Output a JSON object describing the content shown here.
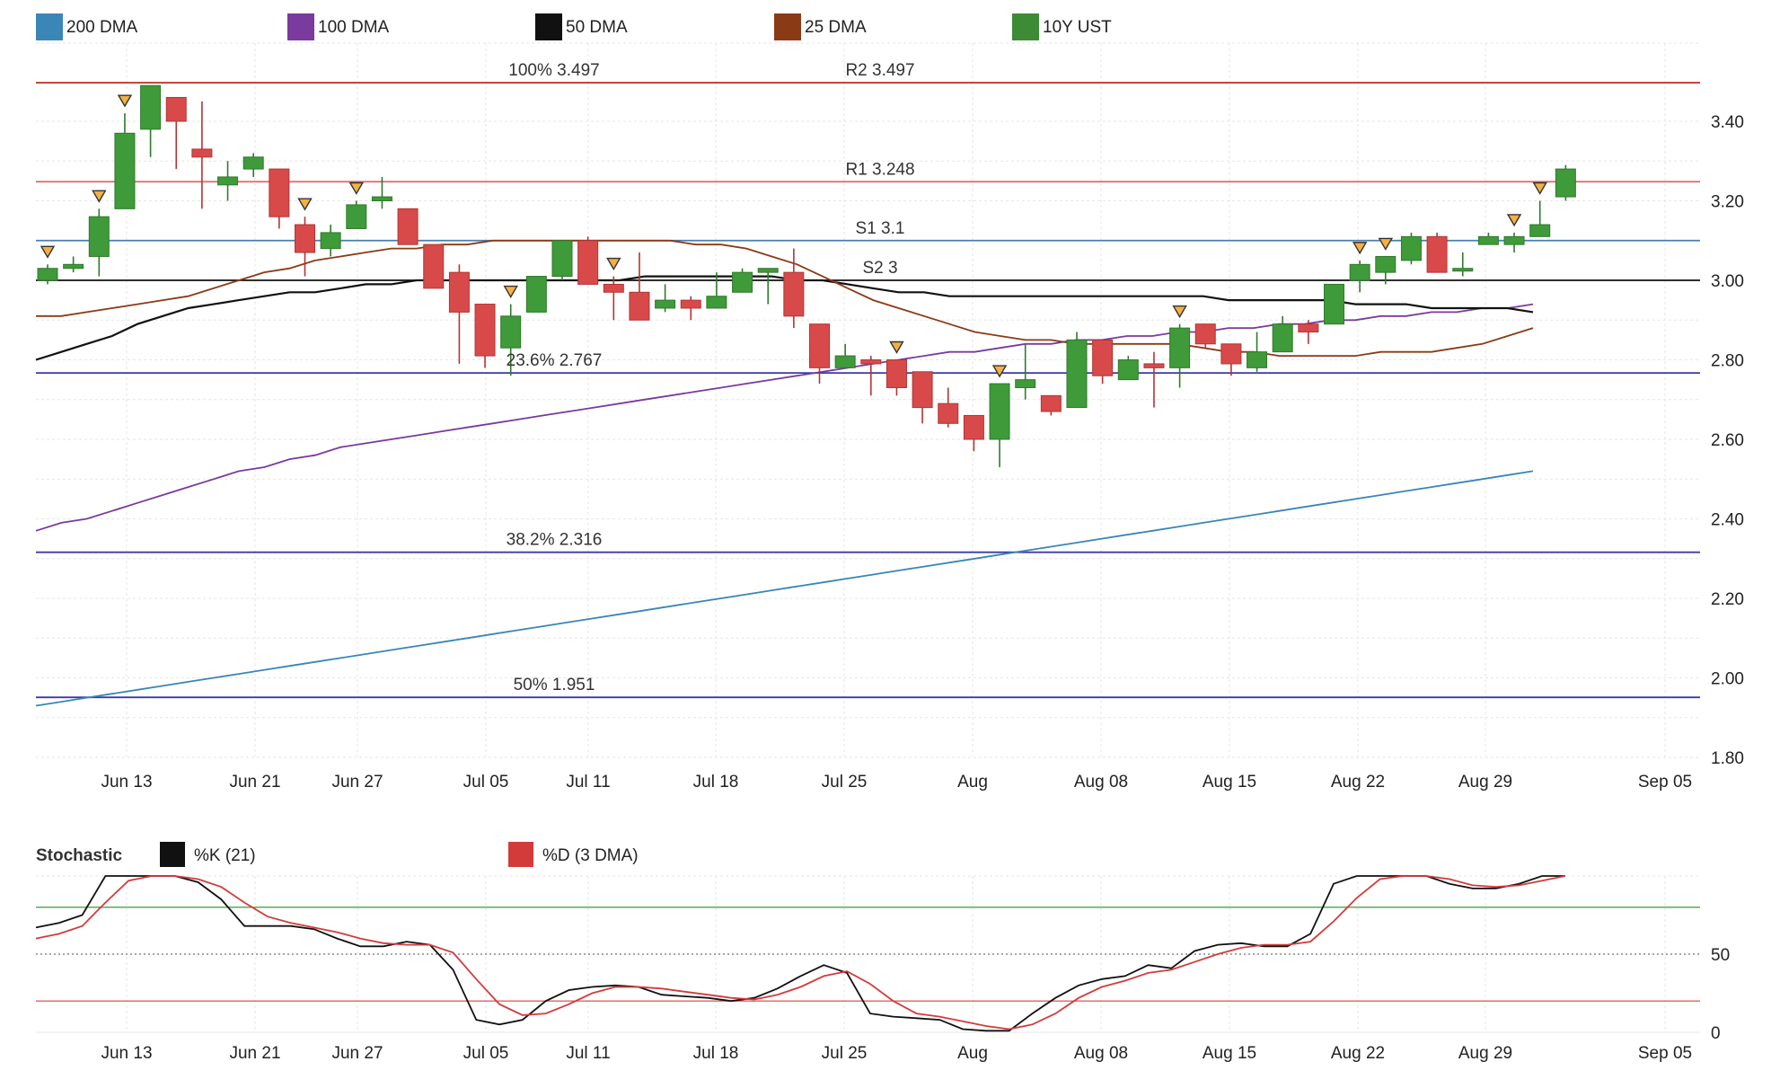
{
  "legend_main": [
    {
      "label": "200 DMA",
      "color": "#3a86b7"
    },
    {
      "label": "100 DMA",
      "color": "#7a3a9e"
    },
    {
      "label": "50 DMA",
      "color": "#111111"
    },
    {
      "label": "25 DMA",
      "color": "#8b3a16"
    },
    {
      "label": "10Y UST",
      "color": "#3d8b35"
    }
  ],
  "legend_stoch": {
    "title": "Stochastic",
    "items": [
      {
        "label": "%K (21)",
        "color": "#111111"
      },
      {
        "label": "%D (3 DMA)",
        "color": "#d33b3b"
      }
    ]
  },
  "chart_data": [
    {
      "type": "candlestick",
      "title": "10Y UST",
      "x_ticks": [
        "Jun 13",
        "Jun 21",
        "Jun 27",
        "Jul 05",
        "Jul 11",
        "Jul 18",
        "Jul 25",
        "Aug",
        "Aug 08",
        "Aug 15",
        "Aug 22",
        "Aug 29",
        "Sep 05"
      ],
      "y_ticks": [
        "1.80",
        "2.00",
        "2.20",
        "2.40",
        "2.60",
        "2.80",
        "3.00",
        "3.20",
        "3.40"
      ],
      "ylim": [
        1.8,
        3.5
      ],
      "levels": [
        {
          "label": "100% 3.497",
          "value": 3.497,
          "color": "#c0392b",
          "label_pos": "left"
        },
        {
          "label": "R2 3.497",
          "value": 3.497,
          "color": "#c0392b",
          "label_pos": "center"
        },
        {
          "label": "R1 3.248",
          "value": 3.248,
          "color": "#e06666",
          "label_pos": "center"
        },
        {
          "label": "S1 3.1",
          "value": 3.1,
          "color": "#4a7fb0",
          "label_pos": "center"
        },
        {
          "label": "S2 3",
          "value": 3.0,
          "color": "#111111",
          "label_pos": "center"
        },
        {
          "label": "23.6% 2.767",
          "value": 2.767,
          "color": "#3a3aa8",
          "label_pos": "left"
        },
        {
          "label": "38.2% 2.316",
          "value": 2.316,
          "color": "#3a3aa8",
          "label_pos": "left"
        },
        {
          "label": "50% 1.951",
          "value": 1.951,
          "color": "#3a3aa8",
          "label_pos": "left"
        }
      ],
      "candles": [
        {
          "o": 3.0,
          "h": 3.04,
          "l": 2.99,
          "c": 3.03,
          "sig": true
        },
        {
          "o": 3.03,
          "h": 3.06,
          "l": 3.02,
          "c": 3.04
        },
        {
          "o": 3.06,
          "h": 3.18,
          "l": 3.01,
          "c": 3.16,
          "sig": true
        },
        {
          "o": 3.18,
          "h": 3.42,
          "l": 3.18,
          "c": 3.37,
          "sig": true
        },
        {
          "o": 3.38,
          "h": 3.49,
          "l": 3.31,
          "c": 3.49
        },
        {
          "o": 3.46,
          "h": 3.46,
          "l": 3.28,
          "c": 3.4
        },
        {
          "o": 3.33,
          "h": 3.45,
          "l": 3.18,
          "c": 3.31
        },
        {
          "o": 3.24,
          "h": 3.3,
          "l": 3.2,
          "c": 3.26
        },
        {
          "o": 3.28,
          "h": 3.32,
          "l": 3.26,
          "c": 3.31
        },
        {
          "o": 3.28,
          "h": 3.28,
          "l": 3.13,
          "c": 3.16
        },
        {
          "o": 3.14,
          "h": 3.16,
          "l": 3.01,
          "c": 3.07,
          "sig": true
        },
        {
          "o": 3.08,
          "h": 3.14,
          "l": 3.06,
          "c": 3.12
        },
        {
          "o": 3.13,
          "h": 3.2,
          "l": 3.13,
          "c": 3.19,
          "sig": true
        },
        {
          "o": 3.2,
          "h": 3.26,
          "l": 3.18,
          "c": 3.21
        },
        {
          "o": 3.18,
          "h": 3.18,
          "l": 3.09,
          "c": 3.09
        },
        {
          "o": 3.09,
          "h": 3.09,
          "l": 2.98,
          "c": 2.98
        },
        {
          "o": 3.02,
          "h": 3.04,
          "l": 2.79,
          "c": 2.92
        },
        {
          "o": 2.94,
          "h": 2.94,
          "l": 2.78,
          "c": 2.81
        },
        {
          "o": 2.83,
          "h": 2.94,
          "l": 2.76,
          "c": 2.91,
          "sig": true
        },
        {
          "o": 2.92,
          "h": 3.01,
          "l": 2.92,
          "c": 3.01
        },
        {
          "o": 3.01,
          "h": 3.1,
          "l": 3.0,
          "c": 3.1
        },
        {
          "o": 3.1,
          "h": 3.11,
          "l": 2.99,
          "c": 2.99
        },
        {
          "o": 2.99,
          "h": 3.01,
          "l": 2.9,
          "c": 2.97,
          "sig": true
        },
        {
          "o": 2.97,
          "h": 3.07,
          "l": 2.9,
          "c": 2.9
        },
        {
          "o": 2.93,
          "h": 2.99,
          "l": 2.92,
          "c": 2.95
        },
        {
          "o": 2.95,
          "h": 2.96,
          "l": 2.9,
          "c": 2.93
        },
        {
          "o": 2.93,
          "h": 3.02,
          "l": 2.93,
          "c": 2.96
        },
        {
          "o": 2.97,
          "h": 3.03,
          "l": 2.97,
          "c": 3.02
        },
        {
          "o": 3.02,
          "h": 3.03,
          "l": 2.94,
          "c": 3.03
        },
        {
          "o": 3.02,
          "h": 3.08,
          "l": 2.88,
          "c": 2.91
        },
        {
          "o": 2.89,
          "h": 2.89,
          "l": 2.74,
          "c": 2.78
        },
        {
          "o": 2.78,
          "h": 2.84,
          "l": 2.78,
          "c": 2.81
        },
        {
          "o": 2.8,
          "h": 2.81,
          "l": 2.71,
          "c": 2.79
        },
        {
          "o": 2.8,
          "h": 2.8,
          "l": 2.71,
          "c": 2.73,
          "sig": true
        },
        {
          "o": 2.77,
          "h": 2.77,
          "l": 2.64,
          "c": 2.68
        },
        {
          "o": 2.69,
          "h": 2.73,
          "l": 2.63,
          "c": 2.64
        },
        {
          "o": 2.66,
          "h": 2.66,
          "l": 2.57,
          "c": 2.6
        },
        {
          "o": 2.6,
          "h": 2.74,
          "l": 2.53,
          "c": 2.74,
          "sig": true
        },
        {
          "o": 2.73,
          "h": 2.84,
          "l": 2.7,
          "c": 2.75
        },
        {
          "o": 2.71,
          "h": 2.71,
          "l": 2.66,
          "c": 2.67
        },
        {
          "o": 2.68,
          "h": 2.87,
          "l": 2.68,
          "c": 2.85
        },
        {
          "o": 2.85,
          "h": 2.85,
          "l": 2.74,
          "c": 2.76
        },
        {
          "o": 2.75,
          "h": 2.81,
          "l": 2.75,
          "c": 2.8
        },
        {
          "o": 2.79,
          "h": 2.82,
          "l": 2.68,
          "c": 2.78
        },
        {
          "o": 2.78,
          "h": 2.89,
          "l": 2.73,
          "c": 2.88,
          "sig": true
        },
        {
          "o": 2.89,
          "h": 2.89,
          "l": 2.83,
          "c": 2.84
        },
        {
          "o": 2.84,
          "h": 2.84,
          "l": 2.76,
          "c": 2.79
        },
        {
          "o": 2.78,
          "h": 2.87,
          "l": 2.77,
          "c": 2.82
        },
        {
          "o": 2.82,
          "h": 2.91,
          "l": 2.82,
          "c": 2.89
        },
        {
          "o": 2.89,
          "h": 2.9,
          "l": 2.84,
          "c": 2.87
        },
        {
          "o": 2.89,
          "h": 2.99,
          "l": 2.89,
          "c": 2.99
        },
        {
          "o": 3.0,
          "h": 3.05,
          "l": 2.97,
          "c": 3.04,
          "sig": true
        },
        {
          "o": 3.02,
          "h": 3.06,
          "l": 2.99,
          "c": 3.06,
          "sig": true
        },
        {
          "o": 3.05,
          "h": 3.12,
          "l": 3.04,
          "c": 3.11
        },
        {
          "o": 3.11,
          "h": 3.12,
          "l": 3.02,
          "c": 3.02
        },
        {
          "o": 3.03,
          "h": 3.07,
          "l": 3.01,
          "c": 3.03
        },
        {
          "o": 3.09,
          "h": 3.12,
          "l": 3.09,
          "c": 3.11
        },
        {
          "o": 3.09,
          "h": 3.12,
          "l": 3.07,
          "c": 3.11,
          "sig": true
        },
        {
          "o": 3.11,
          "h": 3.2,
          "l": 3.11,
          "c": 3.14,
          "sig": true
        },
        {
          "o": 3.21,
          "h": 3.29,
          "l": 3.2,
          "c": 3.28
        }
      ],
      "series": [
        {
          "name": "200 DMA",
          "color": "#3a86b7",
          "values": [
            1.93,
            1.94,
            1.95,
            1.96,
            1.97,
            1.98,
            1.99,
            2.0,
            2.01,
            2.02,
            2.03,
            2.04,
            2.05,
            2.06,
            2.07,
            2.08,
            2.09,
            2.1,
            2.11,
            2.12,
            2.13,
            2.14,
            2.15,
            2.16,
            2.17,
            2.18,
            2.19,
            2.2,
            2.21,
            2.22,
            2.23,
            2.24,
            2.25,
            2.26,
            2.27,
            2.28,
            2.29,
            2.3,
            2.31,
            2.32,
            2.33,
            2.34,
            2.35,
            2.36,
            2.37,
            2.38,
            2.39,
            2.4,
            2.41,
            2.42,
            2.43,
            2.44,
            2.45,
            2.46,
            2.47,
            2.48,
            2.49,
            2.5,
            2.51,
            2.52
          ]
        },
        {
          "name": "100 DMA",
          "color": "#7a3a9e",
          "values": [
            2.37,
            2.39,
            2.4,
            2.42,
            2.44,
            2.46,
            2.48,
            2.5,
            2.52,
            2.53,
            2.55,
            2.56,
            2.58,
            2.59,
            2.6,
            2.61,
            2.62,
            2.63,
            2.64,
            2.65,
            2.66,
            2.67,
            2.68,
            2.69,
            2.7,
            2.71,
            2.72,
            2.73,
            2.74,
            2.75,
            2.76,
            2.77,
            2.78,
            2.79,
            2.8,
            2.81,
            2.82,
            2.82,
            2.83,
            2.84,
            2.84,
            2.85,
            2.85,
            2.86,
            2.86,
            2.87,
            2.87,
            2.88,
            2.88,
            2.89,
            2.89,
            2.9,
            2.9,
            2.91,
            2.91,
            2.92,
            2.92,
            2.93,
            2.93,
            2.94
          ]
        },
        {
          "name": "50 DMA",
          "color": "#111111",
          "values": [
            2.8,
            2.82,
            2.84,
            2.86,
            2.89,
            2.91,
            2.93,
            2.94,
            2.95,
            2.96,
            2.97,
            2.97,
            2.98,
            2.99,
            2.99,
            3.0,
            3.0,
            3.0,
            3.0,
            3.0,
            3.0,
            3.0,
            3.0,
            3.0,
            3.01,
            3.01,
            3.01,
            3.01,
            3.01,
            3.01,
            3.0,
            3.0,
            2.99,
            2.98,
            2.97,
            2.97,
            2.96,
            2.96,
            2.96,
            2.96,
            2.96,
            2.96,
            2.96,
            2.96,
            2.96,
            2.96,
            2.96,
            2.95,
            2.95,
            2.95,
            2.95,
            2.95,
            2.94,
            2.94,
            2.94,
            2.93,
            2.93,
            2.93,
            2.93,
            2.92
          ]
        },
        {
          "name": "25 DMA",
          "color": "#8b3a16",
          "values": [
            2.91,
            2.91,
            2.92,
            2.93,
            2.94,
            2.95,
            2.96,
            2.98,
            3.0,
            3.02,
            3.03,
            3.05,
            3.06,
            3.07,
            3.08,
            3.08,
            3.09,
            3.09,
            3.1,
            3.1,
            3.1,
            3.1,
            3.1,
            3.1,
            3.1,
            3.1,
            3.09,
            3.09,
            3.08,
            3.06,
            3.04,
            3.01,
            2.98,
            2.95,
            2.93,
            2.91,
            2.89,
            2.87,
            2.86,
            2.85,
            2.85,
            2.84,
            2.84,
            2.84,
            2.84,
            2.84,
            2.83,
            2.82,
            2.82,
            2.81,
            2.81,
            2.81,
            2.81,
            2.82,
            2.82,
            2.82,
            2.83,
            2.84,
            2.86,
            2.88
          ]
        }
      ]
    },
    {
      "type": "line",
      "title": "Stochastic",
      "x_ticks": [
        "Jun 13",
        "Jun 21",
        "Jun 27",
        "Jul 05",
        "Jul 11",
        "Jul 18",
        "Jul 25",
        "Aug",
        "Aug 08",
        "Aug 15",
        "Aug 22",
        "Aug 29",
        "Sep 05"
      ],
      "y_ticks": [
        "0",
        "50"
      ],
      "ylim": [
        0,
        100
      ],
      "reference_lines": [
        80,
        50,
        20
      ],
      "series": [
        {
          "name": "%K (21)",
          "color": "#111111",
          "values": [
            67,
            70,
            75,
            100,
            100,
            100,
            100,
            96,
            85,
            68,
            68,
            68,
            66,
            60,
            55,
            55,
            58,
            56,
            40,
            8,
            5,
            8,
            20,
            27,
            29,
            30,
            29,
            24,
            23,
            22,
            20,
            22,
            28,
            36,
            43,
            38,
            12,
            10,
            9,
            8,
            2,
            1,
            1,
            12,
            22,
            30,
            34,
            36,
            43,
            41,
            52,
            56,
            57,
            55,
            55,
            63,
            95,
            100,
            100,
            100,
            100,
            95,
            92,
            92,
            95,
            100,
            100
          ]
        },
        {
          "name": "%D (3 DMA)",
          "color": "#d33b3b",
          "values": [
            60,
            63,
            68,
            83,
            97,
            100,
            100,
            98,
            93,
            83,
            74,
            70,
            67,
            64,
            60,
            57,
            56,
            56,
            51,
            34,
            18,
            11,
            12,
            18,
            25,
            29,
            29,
            28,
            26,
            24,
            22,
            21,
            24,
            29,
            36,
            39,
            31,
            20,
            12,
            10,
            7,
            4,
            2,
            5,
            12,
            22,
            29,
            33,
            38,
            40,
            45,
            50,
            54,
            56,
            56,
            58,
            71,
            86,
            98,
            100,
            100,
            98,
            94,
            93,
            94,
            97,
            100
          ]
        }
      ]
    }
  ]
}
